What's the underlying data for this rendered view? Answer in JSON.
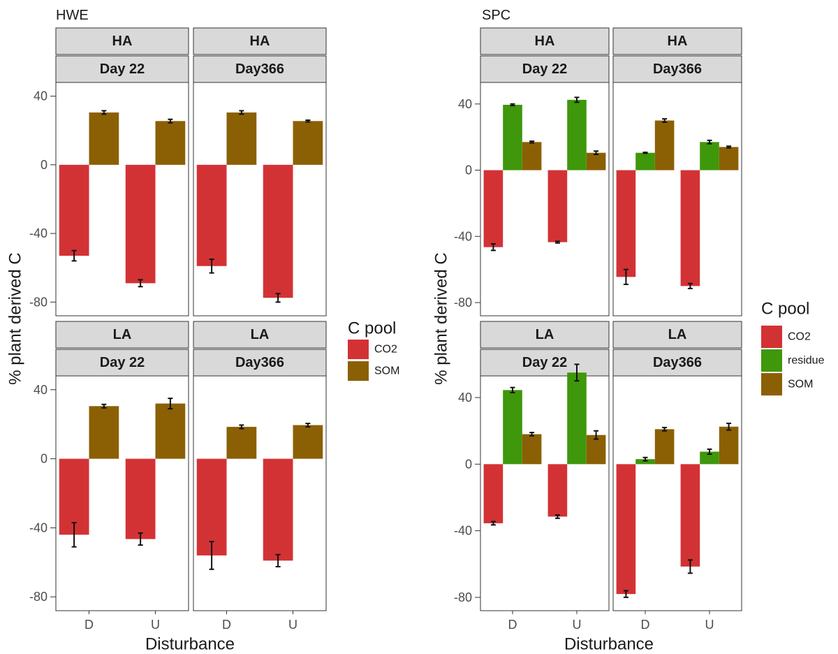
{
  "chart_data": [
    {
      "type": "bar",
      "title": "HWE",
      "xlabel": "Disturbance",
      "ylabel": "% plant derived C",
      "ylim": [
        -88,
        48
      ],
      "yticks": [
        40,
        0,
        -40,
        -80
      ],
      "categories": [
        "D",
        "U"
      ],
      "legend": {
        "title": "C pool",
        "placement": "right",
        "entries": [
          {
            "name": "CO2",
            "color": "#d33235"
          },
          {
            "name": "SOM",
            "color": "#8b6004"
          }
        ]
      },
      "panels": [
        {
          "strips": [
            "HA",
            "Day 22"
          ],
          "series": [
            {
              "name": "CO2",
              "values": [
                -53,
                -69
              ],
              "errors": [
                3,
                2
              ]
            },
            {
              "name": "SOM",
              "values": [
                30.5,
                25.5
              ],
              "errors": [
                1,
                1
              ]
            }
          ]
        },
        {
          "strips": [
            "HA",
            "Day366"
          ],
          "series": [
            {
              "name": "CO2",
              "values": [
                -59,
                -77.5
              ],
              "errors": [
                4,
                2.5
              ]
            },
            {
              "name": "SOM",
              "values": [
                30.5,
                25.5
              ],
              "errors": [
                1,
                0.5
              ]
            }
          ]
        },
        {
          "strips": [
            "LA",
            "Day 22"
          ],
          "series": [
            {
              "name": "CO2",
              "values": [
                -44,
                -46.5
              ],
              "errors": [
                7,
                3.5
              ]
            },
            {
              "name": "SOM",
              "values": [
                30.5,
                32
              ],
              "errors": [
                1,
                3
              ]
            }
          ]
        },
        {
          "strips": [
            "LA",
            "Day366"
          ],
          "series": [
            {
              "name": "CO2",
              "values": [
                -56,
                -59
              ],
              "errors": [
                8,
                3.5
              ]
            },
            {
              "name": "SOM",
              "values": [
                18.5,
                19.5
              ],
              "errors": [
                1,
                1
              ]
            }
          ]
        }
      ]
    },
    {
      "type": "bar",
      "title": "SPC",
      "xlabel": "Disturbance",
      "ylabel": "% plant derived C",
      "ylim": [
        -88,
        53
      ],
      "yticks": [
        40,
        0,
        -40,
        -80
      ],
      "categories": [
        "D",
        "U"
      ],
      "legend": {
        "title": "C pool",
        "placement": "right",
        "entries": [
          {
            "name": "CO2",
            "color": "#d33235"
          },
          {
            "name": "residue",
            "color": "#3f970b"
          },
          {
            "name": "SOM",
            "color": "#8b6004"
          }
        ]
      },
      "panels": [
        {
          "strips": [
            "HA",
            "Day 22"
          ],
          "series": [
            {
              "name": "CO2",
              "values": [
                -46.5,
                -43.5
              ],
              "errors": [
                2,
                0.5
              ]
            },
            {
              "name": "residue",
              "values": [
                39.5,
                42.5
              ],
              "errors": [
                0.5,
                1.5
              ]
            },
            {
              "name": "SOM",
              "values": [
                17,
                10.5
              ],
              "errors": [
                0.5,
                1
              ]
            }
          ]
        },
        {
          "strips": [
            "HA",
            "Day366"
          ],
          "series": [
            {
              "name": "CO2",
              "values": [
                -64.5,
                -70
              ],
              "errors": [
                4.5,
                1.5
              ]
            },
            {
              "name": "residue",
              "values": [
                10.5,
                17
              ],
              "errors": [
                0.3,
                1
              ]
            },
            {
              "name": "SOM",
              "values": [
                30,
                14
              ],
              "errors": [
                1,
                0.5
              ]
            }
          ]
        },
        {
          "strips": [
            "LA",
            "Day 22"
          ],
          "series": [
            {
              "name": "CO2",
              "values": [
                -35.5,
                -31.5
              ],
              "errors": [
                1,
                1
              ]
            },
            {
              "name": "residue",
              "values": [
                44.5,
                55
              ],
              "errors": [
                1.5,
                5
              ]
            },
            {
              "name": "SOM",
              "values": [
                18,
                17.5
              ],
              "errors": [
                1,
                2.5
              ]
            }
          ]
        },
        {
          "strips": [
            "LA",
            "Day366"
          ],
          "series": [
            {
              "name": "CO2",
              "values": [
                -78,
                -61.5
              ],
              "errors": [
                2,
                4
              ]
            },
            {
              "name": "residue",
              "values": [
                3,
                7.5
              ],
              "errors": [
                1,
                1.5
              ]
            },
            {
              "name": "SOM",
              "values": [
                21,
                22.5
              ],
              "errors": [
                1,
                2
              ]
            }
          ]
        }
      ]
    }
  ]
}
